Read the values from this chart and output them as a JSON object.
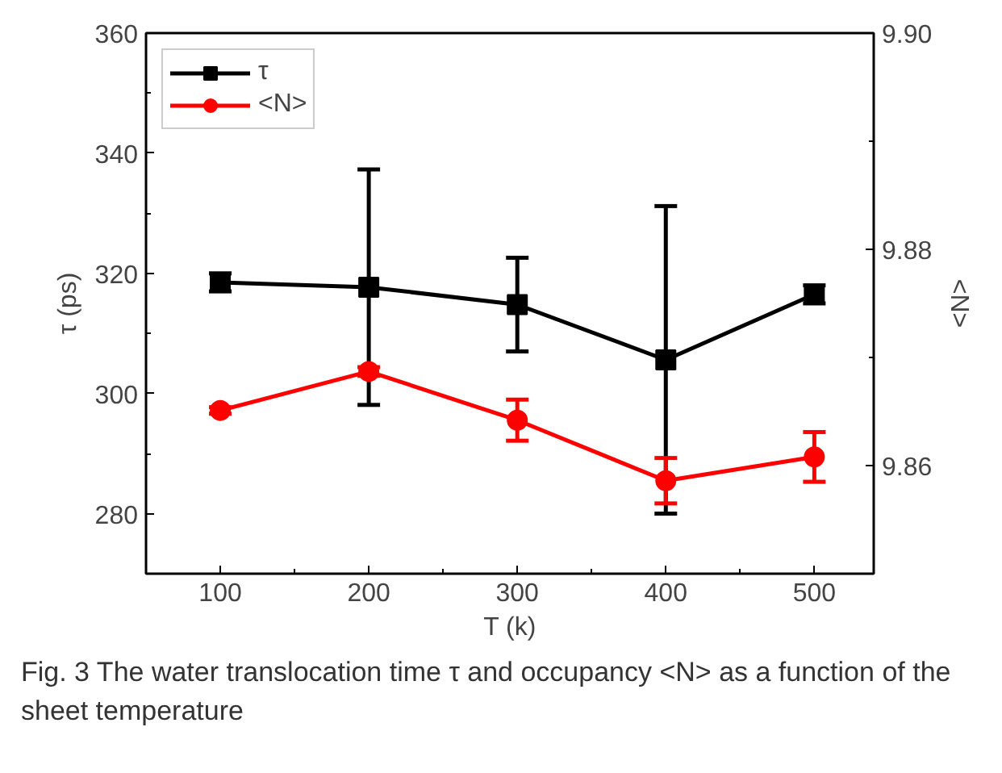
{
  "chart_data": {
    "type": "line",
    "xlabel": "T (k)",
    "ylabel": "τ (ps)",
    "y2label": "<N>",
    "x": [
      100,
      200,
      300,
      400,
      500
    ],
    "series": [
      {
        "name": "τ",
        "color": "#000000",
        "marker": "square",
        "values": [
          318.5,
          317.7,
          314.8,
          305.6,
          316.5
        ],
        "errors": [
          1.5,
          19.6,
          7.8,
          25.6,
          1.5
        ]
      },
      {
        "name": "<N>",
        "color": "#ff0000",
        "marker": "circle",
        "axis": "y2",
        "values": [
          9.8651,
          9.8687,
          9.8642,
          9.8586,
          9.8608
        ],
        "errors": [
          0.0003,
          0.0004,
          0.0019,
          0.0021,
          0.0023
        ]
      }
    ],
    "xlim": [
      50,
      540
    ],
    "xticks": [
      100,
      200,
      300,
      400,
      500
    ],
    "ylim": [
      270,
      360
    ],
    "yticks": [
      280,
      300,
      320,
      340,
      360
    ],
    "y2lim": [
      9.85,
      9.9
    ],
    "y2ticks": [
      9.86,
      9.88,
      {
        "value": 9.9,
        "label": "9.90"
      }
    ],
    "grid": false,
    "legend": "top left",
    "line_style": "solid",
    "annotations": [
      "Fig. 3 The water translocation time τ and occupancy <N> as a function of the sheet temperature"
    ]
  }
}
